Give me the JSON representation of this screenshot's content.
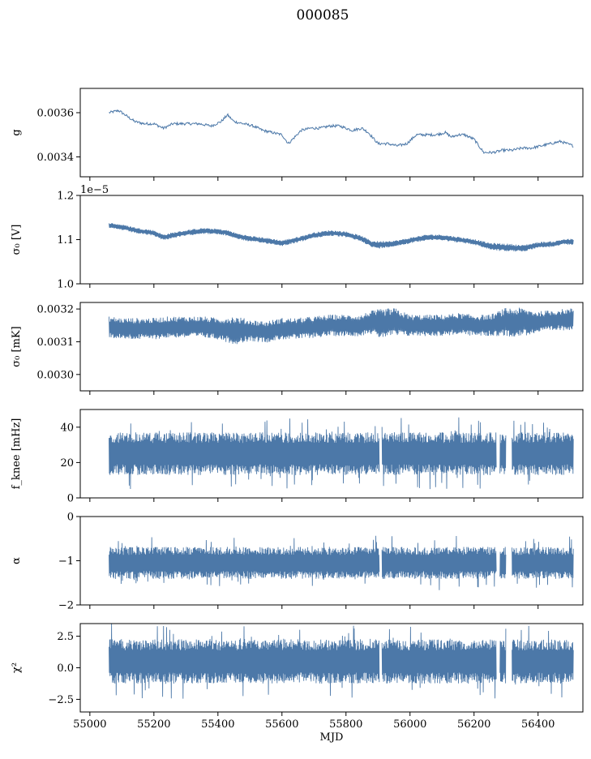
{
  "figure_title": "000085",
  "series_color": "#4c78a8",
  "chart_data": [
    {
      "type": "line",
      "ylabel": "g",
      "ylim": [
        0.00331,
        0.00371
      ],
      "yticks": [
        0.0034,
        0.0036
      ],
      "ytick_labels": [
        "0.0034",
        "0.0036"
      ],
      "xlim": [
        54970,
        56540
      ],
      "style": "thin",
      "series": [
        {
          "x": [
            55060,
            55090,
            55110,
            55140,
            55170,
            55200,
            55230,
            55260,
            55300,
            55340,
            55380,
            55410,
            55430,
            55450,
            55480,
            55510,
            55540,
            55570,
            55600,
            55620,
            55640,
            55660,
            55690,
            55720,
            55750,
            55780,
            55800,
            55820,
            55850,
            55870,
            55900,
            55930,
            55960,
            55990,
            56020,
            56050,
            56080,
            56110,
            56130,
            56150,
            56170,
            56200,
            56230,
            56260,
            56290,
            56320,
            56350,
            56380,
            56410,
            56440,
            56470,
            56490,
            56510
          ],
          "values": [
            0.0036,
            0.00361,
            0.00359,
            0.00356,
            0.00355,
            0.00355,
            0.00353,
            0.00355,
            0.00355,
            0.00355,
            0.00354,
            0.00356,
            0.00359,
            0.00356,
            0.00355,
            0.00354,
            0.00352,
            0.00351,
            0.0035,
            0.00346,
            0.00349,
            0.00352,
            0.00353,
            0.00353,
            0.00354,
            0.00354,
            0.00353,
            0.00352,
            0.00353,
            0.00351,
            0.00346,
            0.00346,
            0.00345,
            0.00346,
            0.0035,
            0.0035,
            0.0035,
            0.00351,
            0.00349,
            0.0035,
            0.0035,
            0.00348,
            0.00342,
            0.00342,
            0.00343,
            0.00343,
            0.00344,
            0.00344,
            0.00345,
            0.00346,
            0.00347,
            0.00346,
            0.00345
          ]
        }
      ]
    },
    {
      "type": "area",
      "ylabel": "σ₀ [V]",
      "offset_text": "1e−5",
      "ylim": [
        1.0,
        1.2
      ],
      "yticks": [
        1.0,
        1.1,
        1.2
      ],
      "ytick_labels": [
        "1.0",
        "1.1",
        "1.2"
      ],
      "xlim": [
        54970,
        56540
      ],
      "style": "band",
      "series": [
        {
          "x": [
            55060,
            55100,
            55150,
            55200,
            55230,
            55260,
            55300,
            55350,
            55400,
            55430,
            55460,
            55500,
            55550,
            55600,
            55650,
            55700,
            55750,
            55800,
            55850,
            55880,
            55900,
            55930,
            55960,
            56000,
            56050,
            56100,
            56150,
            56200,
            56250,
            56280,
            56310,
            56350,
            56400,
            56450,
            56480,
            56510
          ],
          "center": [
            1.132,
            1.128,
            1.12,
            1.115,
            1.105,
            1.11,
            1.115,
            1.12,
            1.118,
            1.115,
            1.108,
            1.102,
            1.098,
            1.092,
            1.1,
            1.11,
            1.115,
            1.112,
            1.102,
            1.09,
            1.088,
            1.09,
            1.092,
            1.098,
            1.105,
            1.105,
            1.1,
            1.095,
            1.085,
            1.083,
            1.082,
            1.08,
            1.088,
            1.09,
            1.095,
            1.095
          ],
          "halfwidth": [
            0.006,
            0.006,
            0.006,
            0.006,
            0.006,
            0.006,
            0.006,
            0.006,
            0.006,
            0.006,
            0.006,
            0.006,
            0.006,
            0.006,
            0.006,
            0.006,
            0.006,
            0.006,
            0.006,
            0.007,
            0.008,
            0.007,
            0.006,
            0.006,
            0.006,
            0.006,
            0.006,
            0.006,
            0.007,
            0.008,
            0.008,
            0.007,
            0.006,
            0.006,
            0.006,
            0.006
          ]
        }
      ]
    },
    {
      "type": "area",
      "ylabel": "σ₀ [mK]",
      "ylim": [
        0.00295,
        0.00322
      ],
      "yticks": [
        0.003,
        0.0031,
        0.0032
      ],
      "ytick_labels": [
        "0.0030",
        "0.0031",
        "0.0032"
      ],
      "xlim": [
        54970,
        56540
      ],
      "style": "band",
      "series": [
        {
          "x": [
            55060,
            55100,
            55150,
            55200,
            55250,
            55300,
            55350,
            55400,
            55450,
            55500,
            55550,
            55600,
            55650,
            55700,
            55750,
            55800,
            55850,
            55870,
            55900,
            55950,
            56000,
            56050,
            56100,
            56150,
            56200,
            56250,
            56300,
            56350,
            56400,
            56450,
            56510
          ],
          "center": [
            0.003145,
            0.00314,
            0.00314,
            0.00314,
            0.003145,
            0.003145,
            0.003145,
            0.00314,
            0.003135,
            0.003135,
            0.00313,
            0.00314,
            0.00314,
            0.003145,
            0.00315,
            0.00315,
            0.00315,
            0.00316,
            0.003155,
            0.00316,
            0.00315,
            0.00315,
            0.00315,
            0.003155,
            0.00315,
            0.00315,
            0.00316,
            0.00316,
            0.00316,
            0.003165,
            0.00317
          ],
          "halfwidth": [
            3e-05,
            3e-05,
            3e-05,
            3e-05,
            3e-05,
            3e-05,
            3e-05,
            3e-05,
            4e-05,
            3e-05,
            3e-05,
            3e-05,
            3e-05,
            3e-05,
            3e-05,
            3e-05,
            3e-05,
            3e-05,
            4e-05,
            4e-05,
            3e-05,
            3e-05,
            3e-05,
            3e-05,
            3e-05,
            3e-05,
            4e-05,
            4e-05,
            3e-05,
            3e-05,
            3e-05
          ]
        }
      ]
    },
    {
      "type": "area",
      "ylabel": "f_knee [mHz]",
      "ylim": [
        0,
        50
      ],
      "yticks": [
        0,
        20,
        40
      ],
      "ytick_labels": [
        "0",
        "20",
        "40"
      ],
      "xlim": [
        54970,
        56540
      ],
      "style": "noise",
      "gaps": [
        [
          55904,
          55912
        ],
        [
          56270,
          56280
        ],
        [
          56300,
          56318
        ]
      ],
      "series": [
        {
          "x": [
            55060,
            56510
          ],
          "center": [
            25,
            25
          ],
          "halfwidth": [
            11,
            11
          ]
        }
      ]
    },
    {
      "type": "area",
      "ylabel": "α",
      "ylim": [
        -2,
        0
      ],
      "yticks": [
        -2,
        -1,
        0
      ],
      "ytick_labels": [
        "−2",
        "−1",
        "0"
      ],
      "xlim": [
        54970,
        56540
      ],
      "style": "noise",
      "gaps": [
        [
          55904,
          55912
        ],
        [
          56270,
          56280
        ],
        [
          56300,
          56318
        ]
      ],
      "series": [
        {
          "x": [
            55060,
            56510
          ],
          "center": [
            -1.05,
            -1.05
          ],
          "halfwidth": [
            0.33,
            0.33
          ]
        }
      ]
    },
    {
      "type": "area",
      "ylabel": "χ²",
      "xlabel": "MJD",
      "ylim": [
        -3.5,
        3.5
      ],
      "yticks": [
        -2.5,
        0.0,
        2.5
      ],
      "ytick_labels": [
        "−2.5",
        "0.0",
        "2.5"
      ],
      "xlim": [
        54970,
        56540
      ],
      "xticks": [
        55000,
        55200,
        55400,
        55600,
        55800,
        56000,
        56200,
        56400
      ],
      "xtick_labels": [
        "55000",
        "55200",
        "55400",
        "55600",
        "55800",
        "56000",
        "56200",
        "56400"
      ],
      "style": "noise",
      "gaps": [
        [
          55904,
          55912
        ],
        [
          56270,
          56280
        ],
        [
          56300,
          56318
        ]
      ],
      "series": [
        {
          "x": [
            55060,
            56510
          ],
          "center": [
            0.5,
            0.5
          ],
          "halfwidth": [
            1.6,
            1.6
          ]
        }
      ]
    }
  ]
}
